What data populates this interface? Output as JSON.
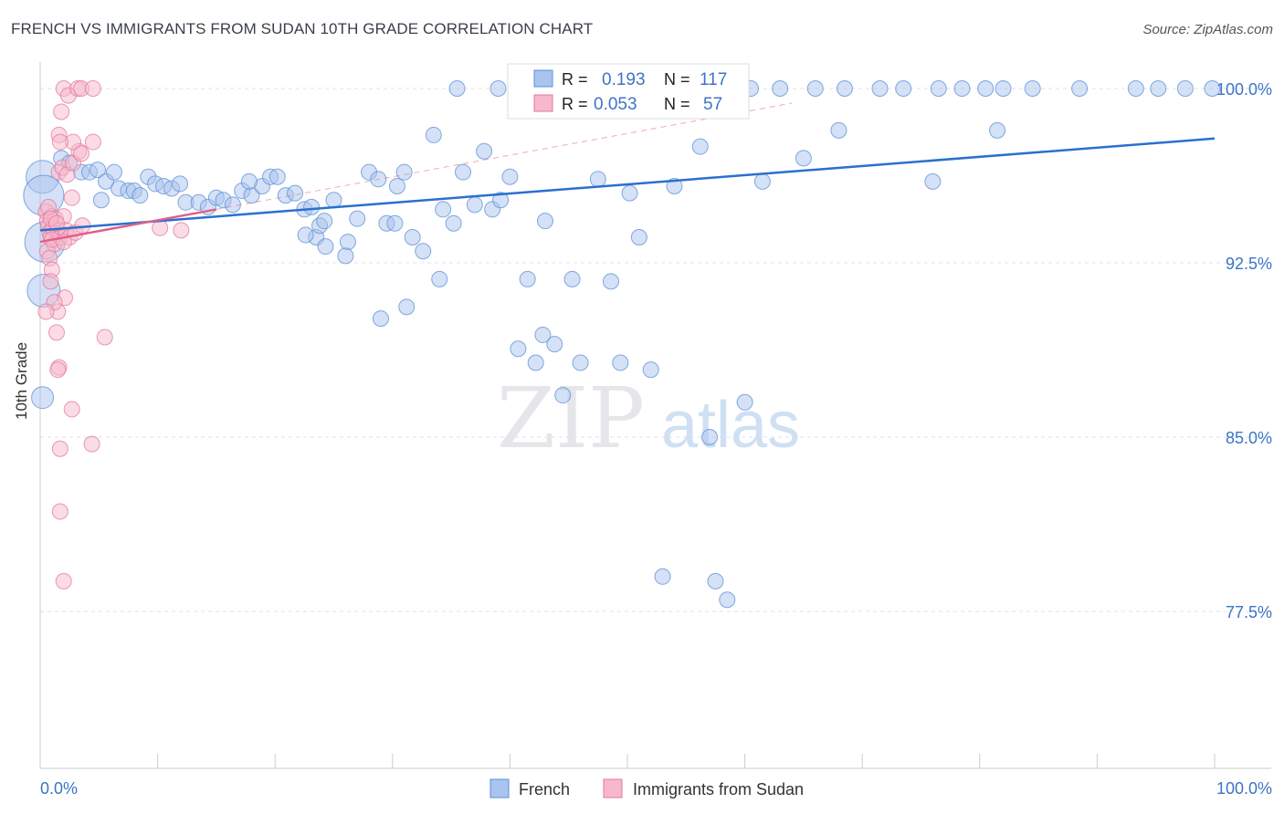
{
  "title": "FRENCH VS IMMIGRANTS FROM SUDAN 10TH GRADE CORRELATION CHART",
  "source": "Source: ZipAtlas.com",
  "watermark": {
    "zip": "ZIP",
    "atlas": "atlas"
  },
  "colors": {
    "french_fill": "#a9c4ee",
    "french_stroke": "#5b8fd6",
    "french_line": "#2b6fcf",
    "sudan_fill": "#f7b8cb",
    "sudan_stroke": "#e2789b",
    "sudan_line": "#e0608a",
    "value_text": "#3c74c8",
    "grid": "#dde1e7"
  },
  "stats": {
    "french": {
      "r_label": "R =",
      "r": "0.193",
      "n_label": "N =",
      "n": "117"
    },
    "sudan": {
      "r_label": "R =",
      "r": "0.053",
      "n_label": "N =",
      "n": "57"
    }
  },
  "chart_data": {
    "type": "scatter",
    "xlabel": "",
    "ylabel": "10th Grade",
    "xlim": [
      0,
      100
    ],
    "ylim": [
      70,
      100.8
    ],
    "x_tick_labels": [
      "0.0%",
      "100.0%"
    ],
    "y_ticks": [
      {
        "value": 100.0,
        "label": "100.0%"
      },
      {
        "value": 92.5,
        "label": "92.5%"
      },
      {
        "value": 85.0,
        "label": "85.0%"
      },
      {
        "value": 77.5,
        "label": "77.5%"
      }
    ],
    "grid": true,
    "legend_position": "bottom-center",
    "series": [
      {
        "name": "French",
        "trend": {
          "x": [
            0,
            100
          ],
          "y": [
            93.9,
            97.85
          ]
        },
        "points": [
          [
            0.2,
            96.2,
            3
          ],
          [
            0.3,
            95.4,
            4
          ],
          [
            0.4,
            93.4,
            4
          ],
          [
            0.3,
            91.3,
            3
          ],
          [
            0.2,
            86.7,
            2
          ],
          [
            1.8,
            97.0,
            1
          ],
          [
            2.5,
            96.8,
            1
          ],
          [
            3.5,
            96.4,
            1
          ],
          [
            4.2,
            96.4,
            1
          ],
          [
            4.9,
            96.5,
            1
          ],
          [
            5.6,
            96.0,
            1
          ],
          [
            6.3,
            96.4,
            1
          ],
          [
            5.2,
            95.2,
            1
          ],
          [
            6.7,
            95.7,
            1
          ],
          [
            7.5,
            95.6,
            1
          ],
          [
            8.0,
            95.6,
            1
          ],
          [
            8.5,
            95.4,
            1
          ],
          [
            9.2,
            96.2,
            1
          ],
          [
            9.8,
            95.9,
            1
          ],
          [
            10.5,
            95.8,
            1
          ],
          [
            11.2,
            95.7,
            1
          ],
          [
            11.9,
            95.9,
            1
          ],
          [
            12.4,
            95.1,
            1
          ],
          [
            13.5,
            95.1,
            1
          ],
          [
            14.3,
            94.9,
            1
          ],
          [
            15.0,
            95.3,
            1
          ],
          [
            15.6,
            95.2,
            1
          ],
          [
            16.4,
            95.0,
            1
          ],
          [
            17.2,
            95.6,
            1
          ],
          [
            18.0,
            95.4,
            1
          ],
          [
            18.9,
            95.8,
            1
          ],
          [
            19.6,
            96.2,
            1
          ],
          [
            20.2,
            96.2,
            1
          ],
          [
            20.9,
            95.4,
            1
          ],
          [
            21.7,
            95.5,
            1
          ],
          [
            22.5,
            94.8,
            1
          ],
          [
            23.5,
            93.6,
            1
          ],
          [
            24.3,
            93.2,
            1
          ],
          [
            25.0,
            95.2,
            1
          ],
          [
            26.2,
            93.4,
            1
          ],
          [
            27.0,
            94.4,
            1
          ],
          [
            28.0,
            96.4,
            1
          ],
          [
            28.8,
            96.1,
            1
          ],
          [
            29.5,
            94.2,
            1
          ],
          [
            30.2,
            94.2,
            1
          ],
          [
            31.0,
            96.4,
            1
          ],
          [
            31.7,
            93.6,
            1
          ],
          [
            32.6,
            93.0,
            1
          ],
          [
            33.5,
            98.0,
            1
          ],
          [
            34.3,
            94.8,
            1
          ],
          [
            35.2,
            94.2,
            1
          ],
          [
            36.0,
            96.4,
            1
          ],
          [
            37.0,
            95.0,
            1
          ],
          [
            37.8,
            97.3,
            1
          ],
          [
            38.5,
            94.8,
            1
          ],
          [
            39.2,
            95.2,
            1
          ],
          [
            40.0,
            96.2,
            1
          ],
          [
            40.7,
            88.8,
            1
          ],
          [
            41.5,
            91.8,
            1
          ],
          [
            42.2,
            88.2,
            1
          ],
          [
            43.0,
            94.3,
            1
          ],
          [
            43.8,
            89.0,
            1
          ],
          [
            44.5,
            86.8,
            1
          ],
          [
            45.3,
            91.8,
            1
          ],
          [
            46.0,
            88.2,
            1
          ],
          [
            47.5,
            96.1,
            1
          ],
          [
            48.6,
            91.7,
            1
          ],
          [
            49.4,
            88.2,
            1
          ],
          [
            50.2,
            95.5,
            1
          ],
          [
            51.0,
            93.6,
            1
          ],
          [
            52.0,
            87.9,
            1
          ],
          [
            53.0,
            79.0,
            1
          ],
          [
            54.0,
            95.8,
            1
          ],
          [
            56.2,
            97.5,
            1
          ],
          [
            57.0,
            85.0,
            1
          ],
          [
            57.5,
            78.8,
            1
          ],
          [
            58.5,
            78.0,
            1
          ],
          [
            60.0,
            86.5,
            1
          ],
          [
            61.5,
            96.0,
            1
          ],
          [
            65.0,
            97.0,
            1
          ],
          [
            68.0,
            98.2,
            1
          ],
          [
            23.1,
            94.9,
            1
          ],
          [
            23.8,
            94.1,
            1
          ],
          [
            24.2,
            94.3,
            1
          ],
          [
            22.6,
            93.7,
            1
          ],
          [
            26.0,
            92.8,
            1
          ],
          [
            29.0,
            90.1,
            1
          ],
          [
            31.2,
            90.6,
            1
          ],
          [
            34.0,
            91.8,
            1
          ],
          [
            42.8,
            89.4,
            1
          ],
          [
            35.5,
            100.0,
            1
          ],
          [
            39.0,
            100.0,
            1
          ],
          [
            41.5,
            100.0,
            1
          ],
          [
            43.0,
            100.0,
            1
          ],
          [
            46.0,
            100.0,
            1
          ],
          [
            48.0,
            100.0,
            1
          ],
          [
            49.5,
            100.0,
            1
          ],
          [
            51.0,
            100.0,
            1
          ],
          [
            53.0,
            100.0,
            1
          ],
          [
            55.0,
            100.0,
            1
          ],
          [
            57.0,
            100.0,
            1
          ],
          [
            59.2,
            100.0,
            1
          ],
          [
            60.5,
            100.0,
            1
          ],
          [
            63.0,
            100.0,
            1
          ],
          [
            66.0,
            100.0,
            1
          ],
          [
            68.5,
            100.0,
            1
          ],
          [
            71.5,
            100.0,
            1
          ],
          [
            73.5,
            100.0,
            1
          ],
          [
            76.5,
            100.0,
            1
          ],
          [
            78.5,
            100.0,
            1
          ],
          [
            80.5,
            100.0,
            1
          ],
          [
            82.0,
            100.0,
            1
          ],
          [
            84.5,
            100.0,
            1
          ],
          [
            88.5,
            100.0,
            1
          ],
          [
            93.3,
            100.0,
            1
          ],
          [
            95.2,
            100.0,
            1
          ],
          [
            97.5,
            100.0,
            1
          ],
          [
            99.8,
            100.0,
            1
          ],
          [
            76.0,
            96.0,
            1
          ],
          [
            81.5,
            98.2,
            1
          ],
          [
            30.4,
            95.8,
            1
          ],
          [
            17.8,
            96.0,
            1
          ]
        ]
      },
      {
        "name": "Immigrants from Sudan",
        "trend": {
          "x": [
            0,
            15
          ],
          "y": [
            93.4,
            94.8
          ]
        },
        "points": [
          [
            0.5,
            94.7,
            1
          ],
          [
            0.6,
            94.3,
            1
          ],
          [
            0.7,
            94.1,
            1
          ],
          [
            0.8,
            93.8,
            1
          ],
          [
            0.9,
            93.6,
            1
          ],
          [
            1.0,
            94.5,
            1
          ],
          [
            1.1,
            94.0,
            1
          ],
          [
            1.2,
            93.3,
            1
          ],
          [
            0.6,
            93.0,
            1
          ],
          [
            0.8,
            92.7,
            1
          ],
          [
            1.0,
            92.2,
            1
          ],
          [
            1.3,
            94.4,
            1
          ],
          [
            1.5,
            93.9,
            1
          ],
          [
            1.7,
            93.6,
            1
          ],
          [
            2.0,
            94.5,
            1
          ],
          [
            2.2,
            93.9,
            1
          ],
          [
            2.5,
            93.6,
            1
          ],
          [
            3.0,
            93.8,
            1
          ],
          [
            1.6,
            96.4,
            1
          ],
          [
            1.9,
            96.6,
            1
          ],
          [
            2.3,
            96.3,
            1
          ],
          [
            2.8,
            96.8,
            1
          ],
          [
            3.3,
            97.3,
            1
          ],
          [
            4.5,
            97.7,
            1
          ],
          [
            2.8,
            97.7,
            1
          ],
          [
            1.6,
            98.0,
            1
          ],
          [
            1.7,
            97.7,
            1
          ],
          [
            3.5,
            97.2,
            1
          ],
          [
            1.8,
            99.0,
            1
          ],
          [
            2.0,
            100.0,
            1
          ],
          [
            2.4,
            99.7,
            1
          ],
          [
            3.2,
            100.0,
            1
          ],
          [
            3.5,
            100.0,
            1
          ],
          [
            4.5,
            100.0,
            1
          ],
          [
            2.7,
            95.3,
            1
          ],
          [
            3.6,
            94.1,
            1
          ],
          [
            10.2,
            94.0,
            1
          ],
          [
            12.0,
            93.9,
            1
          ],
          [
            0.9,
            91.7,
            1
          ],
          [
            1.5,
            90.4,
            1
          ],
          [
            2.1,
            91.0,
            1
          ],
          [
            1.4,
            89.5,
            1
          ],
          [
            1.6,
            88.0,
            1
          ],
          [
            1.5,
            87.9,
            1
          ],
          [
            2.7,
            86.2,
            1
          ],
          [
            1.7,
            84.5,
            1
          ],
          [
            4.4,
            84.7,
            1
          ],
          [
            1.7,
            81.8,
            1
          ],
          [
            2.0,
            78.8,
            1
          ],
          [
            5.5,
            89.3,
            1
          ],
          [
            0.7,
            94.9,
            1
          ],
          [
            0.9,
            94.4,
            1
          ],
          [
            1.0,
            93.5,
            1
          ],
          [
            1.4,
            94.2,
            1
          ],
          [
            2.0,
            93.4,
            1
          ],
          [
            1.2,
            90.8,
            1
          ],
          [
            0.5,
            90.4,
            1
          ]
        ]
      }
    ]
  },
  "legend": {
    "items": [
      "French",
      "Immigrants from Sudan"
    ]
  }
}
